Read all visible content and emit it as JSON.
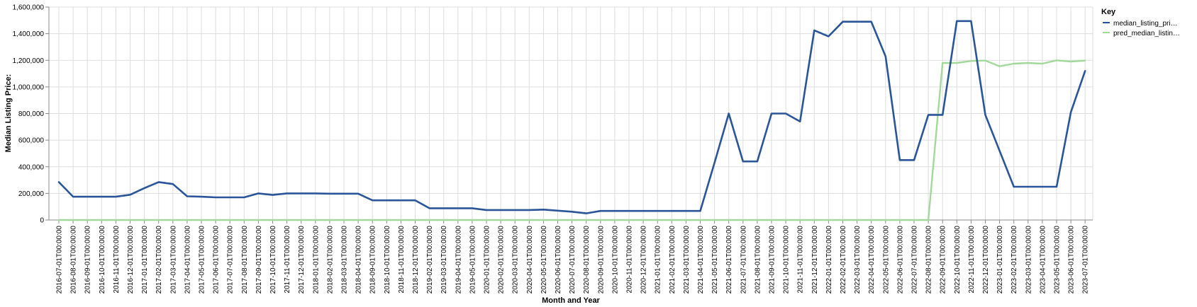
{
  "chart_data": {
    "type": "line",
    "xlabel": "Month and Year",
    "ylabel": "Median Listing Price:",
    "ylim": [
      0,
      1600000
    ],
    "yticks": [
      "0",
      "200,000",
      "400,000",
      "600,000",
      "800,000",
      "1,000,000",
      "1,200,000",
      "1,400,000",
      "1,600,000"
    ],
    "ytick_values": [
      0,
      200000,
      400000,
      600000,
      800000,
      1000000,
      1200000,
      1400000,
      1600000
    ],
    "grid": true,
    "legend": {
      "title": "Key",
      "position": "top-right",
      "items": [
        "median_listing_pri…",
        "pred_median_listin…"
      ]
    },
    "x": [
      "2016-07-01T00:00:00",
      "2016-08-01T00:00:00",
      "2016-09-01T00:00:00",
      "2016-10-01T00:00:00",
      "2016-11-01T00:00:00",
      "2016-12-01T00:00:00",
      "2017-01-01T00:00:00",
      "2017-02-01T00:00:00",
      "2017-03-01T00:00:00",
      "2017-04-01T00:00:00",
      "2017-05-01T00:00:00",
      "2017-06-01T00:00:00",
      "2017-07-01T00:00:00",
      "2017-08-01T00:00:00",
      "2017-09-01T00:00:00",
      "2017-10-01T00:00:00",
      "2017-11-01T00:00:00",
      "2017-12-01T00:00:00",
      "2018-01-01T00:00:00",
      "2018-02-01T00:00:00",
      "2018-03-01T00:00:00",
      "2018-04-01T00:00:00",
      "2018-09-01T00:00:00",
      "2018-10-01T00:00:00",
      "2018-11-01T00:00:00",
      "2018-12-01T00:00:00",
      "2019-02-01T00:00:00",
      "2019-03-01T00:00:00",
      "2019-04-01T00:00:00",
      "2019-05-01T00:00:00",
      "2020-01-01T00:00:00",
      "2020-02-01T00:00:00",
      "2020-03-01T00:00:00",
      "2020-04-01T00:00:00",
      "2020-05-01T00:00:00",
      "2020-06-01T00:00:00",
      "2020-07-01T00:00:00",
      "2020-08-01T00:00:00",
      "2020-09-01T00:00:00",
      "2020-10-01T00:00:00",
      "2020-11-01T00:00:00",
      "2020-12-01T00:00:00",
      "2021-01-01T00:00:00",
      "2021-02-01T00:00:00",
      "2021-03-01T00:00:00",
      "2021-04-01T00:00:00",
      "2021-05-01T00:00:00",
      "2021-06-01T00:00:00",
      "2021-07-01T00:00:00",
      "2021-08-01T00:00:00",
      "2021-09-01T00:00:00",
      "2021-10-01T00:00:00",
      "2021-11-01T00:00:00",
      "2021-12-01T00:00:00",
      "2022-01-01T00:00:00",
      "2022-02-01T00:00:00",
      "2022-03-01T00:00:00",
      "2022-04-01T00:00:00",
      "2022-05-01T00:00:00",
      "2022-06-01T00:00:00",
      "2022-07-01T00:00:00",
      "2022-08-01T00:00:00",
      "2022-09-01T00:00:00",
      "2022-10-01T00:00:00",
      "2022-11-01T00:00:00",
      "2022-12-01T00:00:00",
      "2023-01-01T00:00:00",
      "2023-02-01T00:00:00",
      "2023-03-01T00:00:00",
      "2023-04-01T00:00:00",
      "2023-05-01T00:00:00",
      "2023-06-01T00:00:00",
      "2023-07-01T00:00:00"
    ],
    "series": [
      {
        "name": "median_listing_pri…",
        "color": "#2a5599",
        "values": [
          285000,
          175000,
          175000,
          175000,
          175000,
          190000,
          240000,
          285000,
          270000,
          178000,
          175000,
          170000,
          170000,
          170000,
          200000,
          188000,
          200000,
          200000,
          200000,
          198000,
          198000,
          198000,
          148000,
          148000,
          148000,
          148000,
          88000,
          88000,
          88000,
          88000,
          75000,
          75000,
          75000,
          75000,
          78000,
          70000,
          62000,
          50000,
          68000,
          68000,
          68000,
          68000,
          68000,
          68000,
          68000,
          68000,
          430000,
          800000,
          440000,
          440000,
          800000,
          800000,
          740000,
          1425000,
          1380000,
          1490000,
          1490000,
          1490000,
          1230000,
          450000,
          450000,
          790000,
          790000,
          1495000,
          1495000,
          790000,
          520000,
          250000,
          250000,
          250000,
          250000,
          810000,
          1120000
        ]
      },
      {
        "name": "pred_median_listin…",
        "color": "#a2d99a",
        "values": [
          0,
          0,
          0,
          0,
          0,
          0,
          0,
          0,
          0,
          0,
          0,
          0,
          0,
          0,
          0,
          0,
          0,
          0,
          0,
          0,
          0,
          0,
          0,
          0,
          0,
          0,
          0,
          0,
          0,
          0,
          0,
          0,
          0,
          0,
          0,
          0,
          0,
          0,
          0,
          0,
          0,
          0,
          0,
          0,
          0,
          0,
          0,
          0,
          0,
          0,
          0,
          0,
          0,
          0,
          0,
          0,
          0,
          0,
          0,
          0,
          0,
          0,
          1180000,
          1180000,
          1195000,
          1198000,
          1155000,
          1175000,
          1180000,
          1175000,
          1200000,
          1190000,
          1198000
        ]
      }
    ]
  }
}
